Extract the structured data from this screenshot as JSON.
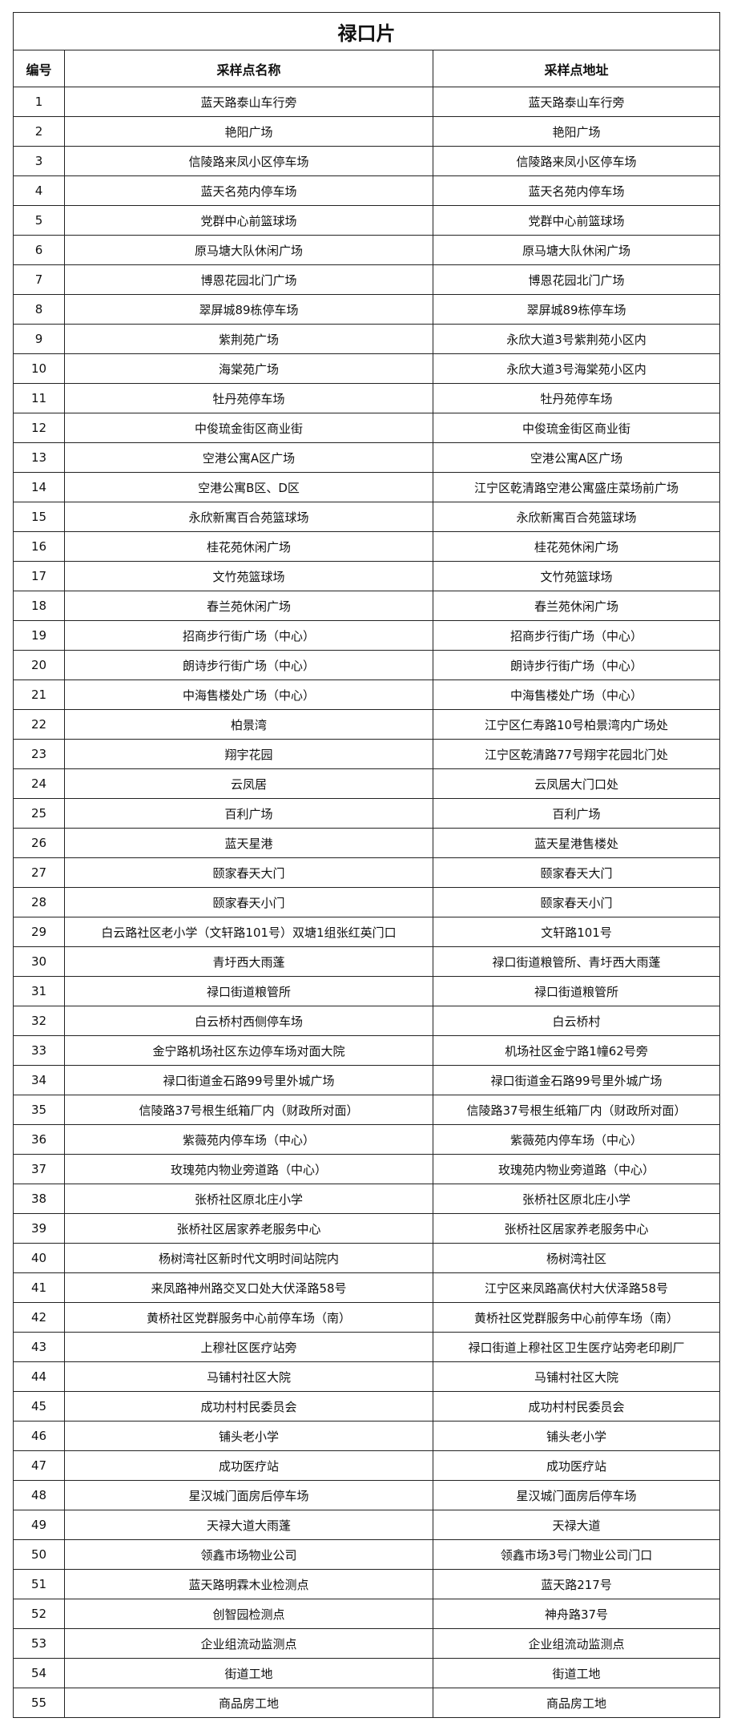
{
  "title": "禄口片",
  "headers": [
    "编号",
    "采样点名称",
    "采样点地址"
  ],
  "rows": [
    [
      "1",
      "蓝天路泰山车行旁",
      "蓝天路泰山车行旁"
    ],
    [
      "2",
      "艳阳广场",
      "艳阳广场"
    ],
    [
      "3",
      "信陵路来凤小区停车场",
      "信陵路来凤小区停车场"
    ],
    [
      "4",
      "蓝天名苑内停车场",
      "蓝天名苑内停车场"
    ],
    [
      "5",
      "党群中心前篮球场",
      "党群中心前篮球场"
    ],
    [
      "6",
      "原马塘大队休闲广场",
      "原马塘大队休闲广场"
    ],
    [
      "7",
      "博恩花园北门广场",
      "博恩花园北门广场"
    ],
    [
      "8",
      "翠屏城89栋停车场",
      "翠屏城89栋停车场"
    ],
    [
      "9",
      "紫荆苑广场",
      "永欣大道3号紫荆苑小区内"
    ],
    [
      "10",
      "海棠苑广场",
      "永欣大道3号海棠苑小区内"
    ],
    [
      "11",
      "牡丹苑停车场",
      "牡丹苑停车场"
    ],
    [
      "12",
      "中俊琉金街区商业街",
      "中俊琉金街区商业街"
    ],
    [
      "13",
      "空港公寓A区广场",
      "空港公寓A区广场"
    ],
    [
      "14",
      "空港公寓B区、D区",
      "江宁区乾清路空港公寓盛庄菜场前广场"
    ],
    [
      "15",
      "永欣新寓百合苑篮球场",
      "永欣新寓百合苑篮球场"
    ],
    [
      "16",
      "桂花苑休闲广场",
      "桂花苑休闲广场"
    ],
    [
      "17",
      "文竹苑篮球场",
      "文竹苑篮球场"
    ],
    [
      "18",
      "春兰苑休闲广场",
      "春兰苑休闲广场"
    ],
    [
      "19",
      "招商步行街广场（中心）",
      "招商步行街广场（中心）"
    ],
    [
      "20",
      "朗诗步行街广场（中心）",
      "朗诗步行街广场（中心）"
    ],
    [
      "21",
      "中海售楼处广场（中心）",
      "中海售楼处广场（中心）"
    ],
    [
      "22",
      "柏景湾",
      "江宁区仁寿路10号柏景湾内广场处"
    ],
    [
      "23",
      "翔宇花园",
      "江宁区乾清路77号翔宇花园北门处"
    ],
    [
      "24",
      "云凤居",
      "云凤居大门口处"
    ],
    [
      "25",
      "百利广场",
      "百利广场"
    ],
    [
      "26",
      "蓝天星港",
      "蓝天星港售楼处"
    ],
    [
      "27",
      "颐家春天大门",
      "颐家春天大门"
    ],
    [
      "28",
      "颐家春天小门",
      "颐家春天小门"
    ],
    [
      "29",
      "白云路社区老小学（文轩路101号）双塘1组张红英门口",
      "文轩路101号"
    ],
    [
      "30",
      "青圩西大雨蓬",
      "禄口街道粮管所、青圩西大雨蓬"
    ],
    [
      "31",
      "禄口街道粮管所",
      "禄口街道粮管所"
    ],
    [
      "32",
      "白云桥村西侧停车场",
      "白云桥村"
    ],
    [
      "33",
      "金宁路机场社区东边停车场对面大院",
      "机场社区金宁路1幢62号旁"
    ],
    [
      "34",
      "禄口街道金石路99号里外城广场",
      "禄口街道金石路99号里外城广场"
    ],
    [
      "35",
      "信陵路37号根生纸箱厂内（财政所对面）",
      "信陵路37号根生纸箱厂内（财政所对面）"
    ],
    [
      "36",
      "紫薇苑内停车场（中心）",
      "紫薇苑内停车场（中心）"
    ],
    [
      "37",
      "玫瑰苑内物业旁道路（中心）",
      "玫瑰苑内物业旁道路（中心）"
    ],
    [
      "38",
      "张桥社区原北庄小学",
      "张桥社区原北庄小学"
    ],
    [
      "39",
      "张桥社区居家养老服务中心",
      "张桥社区居家养老服务中心"
    ],
    [
      "40",
      "杨树湾社区新时代文明时间站院内",
      "杨树湾社区"
    ],
    [
      "41",
      "来凤路神州路交叉口处大伏泽路58号",
      "江宁区来凤路高伏村大伏泽路58号"
    ],
    [
      "42",
      "黄桥社区党群服务中心前停车场（南）",
      "黄桥社区党群服务中心前停车场（南）"
    ],
    [
      "43",
      "上穆社区医疗站旁",
      "禄口街道上穆社区卫生医疗站旁老印刷厂"
    ],
    [
      "44",
      "马铺村社区大院",
      "马铺村社区大院"
    ],
    [
      "45",
      "成功村村民委员会",
      "成功村村民委员会"
    ],
    [
      "46",
      "铺头老小学",
      "铺头老小学"
    ],
    [
      "47",
      "成功医疗站",
      "成功医疗站"
    ],
    [
      "48",
      "星汉城门面房后停车场",
      "星汉城门面房后停车场"
    ],
    [
      "49",
      "天禄大道大雨蓬",
      "天禄大道"
    ],
    [
      "50",
      "领鑫市场物业公司",
      "领鑫市场3号门物业公司门口"
    ],
    [
      "51",
      "蓝天路明霖木业检测点",
      "蓝天路217号"
    ],
    [
      "52",
      "创智园检测点",
      "神舟路37号"
    ],
    [
      "53",
      "企业组流动监测点",
      "企业组流动监测点"
    ],
    [
      "54",
      "街道工地",
      "街道工地"
    ],
    [
      "55",
      "商品房工地",
      "商品房工地"
    ]
  ]
}
